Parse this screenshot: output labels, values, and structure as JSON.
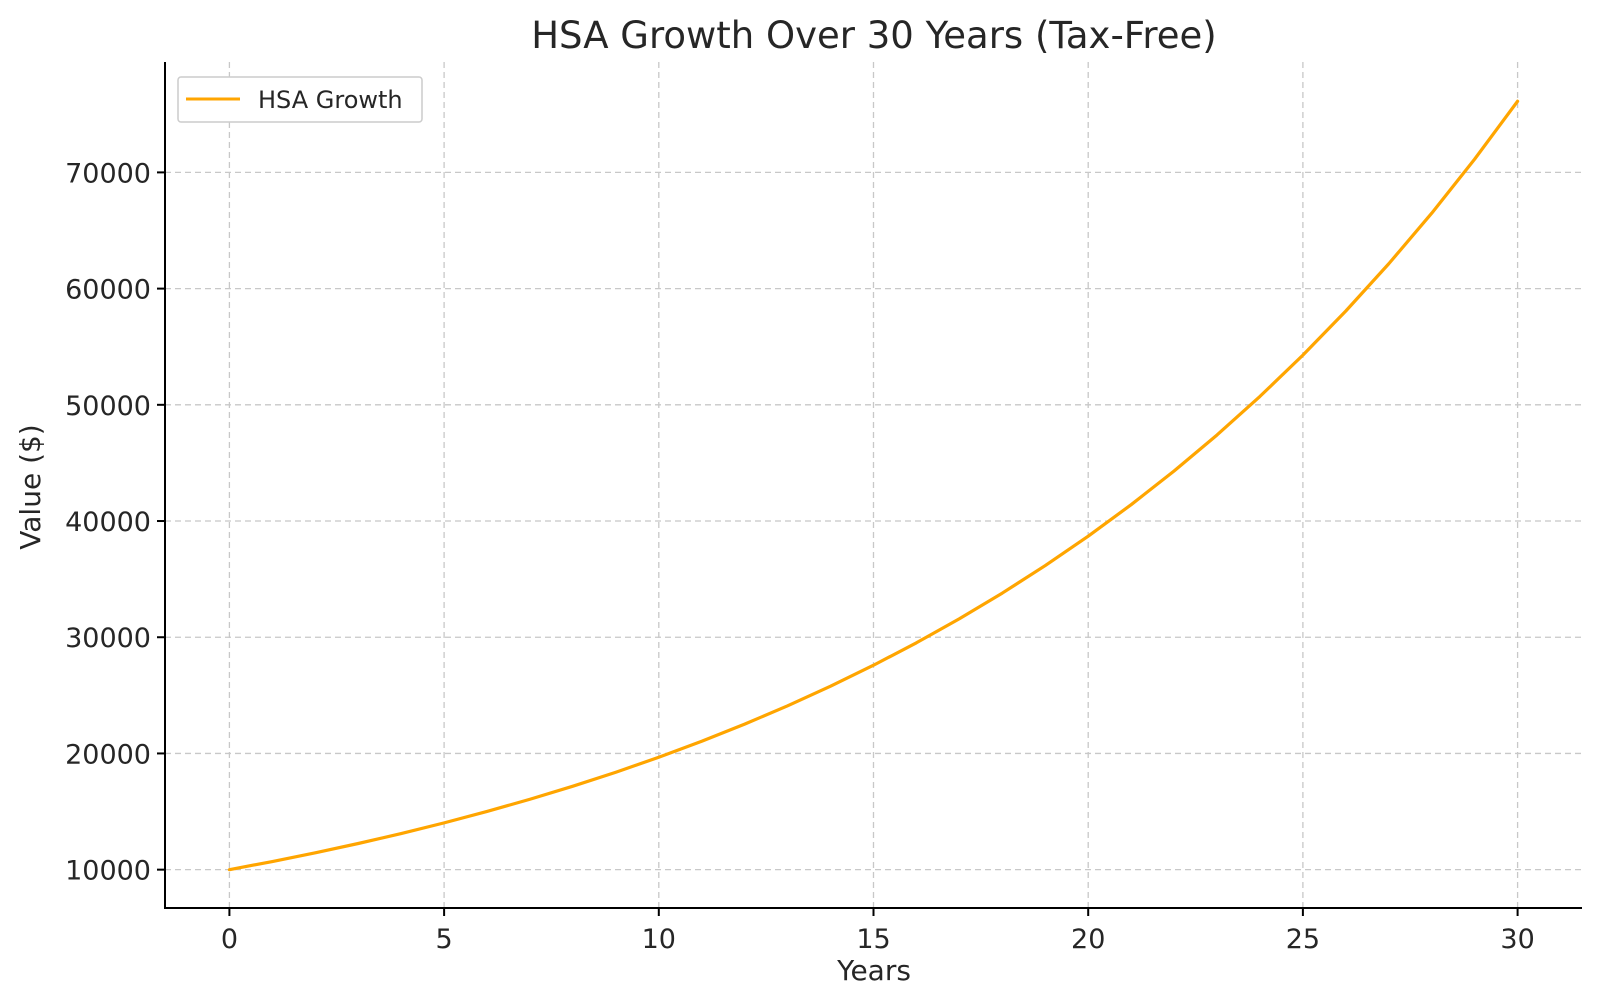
{
  "chart_data": {
    "type": "line",
    "title": "HSA Growth Over 30 Years (Tax-Free)",
    "xlabel": "Years",
    "ylabel": "Value ($)",
    "xlim": [
      -1.5,
      31.5
    ],
    "ylim": [
      6700,
      79500
    ],
    "xticks": [
      0,
      5,
      10,
      15,
      20,
      25,
      30
    ],
    "yticks": [
      10000,
      20000,
      30000,
      40000,
      50000,
      60000,
      70000
    ],
    "xtick_labels": [
      "0",
      "5",
      "10",
      "15",
      "20",
      "25",
      "30"
    ],
    "ytick_labels": [
      "10000",
      "20000",
      "30000",
      "40000",
      "50000",
      "60000",
      "70000"
    ],
    "grid": true,
    "legend_position": "top-left",
    "series": [
      {
        "name": "HSA Growth",
        "color": "#ffa500",
        "x": [
          0,
          1,
          2,
          3,
          4,
          5,
          6,
          7,
          8,
          9,
          10,
          11,
          12,
          13,
          14,
          15,
          16,
          17,
          18,
          19,
          20,
          21,
          22,
          23,
          24,
          25,
          26,
          27,
          28,
          29,
          30
        ],
        "values": [
          10000,
          10700,
          11449,
          12250,
          13108,
          14026,
          15007,
          16058,
          17182,
          18385,
          19672,
          21049,
          22522,
          24098,
          25785,
          27590,
          29522,
          31588,
          33799,
          36165,
          38697,
          41406,
          44304,
          47405,
          50724,
          54274,
          58074,
          62139,
          66488,
          71143,
          76123
        ]
      }
    ]
  }
}
